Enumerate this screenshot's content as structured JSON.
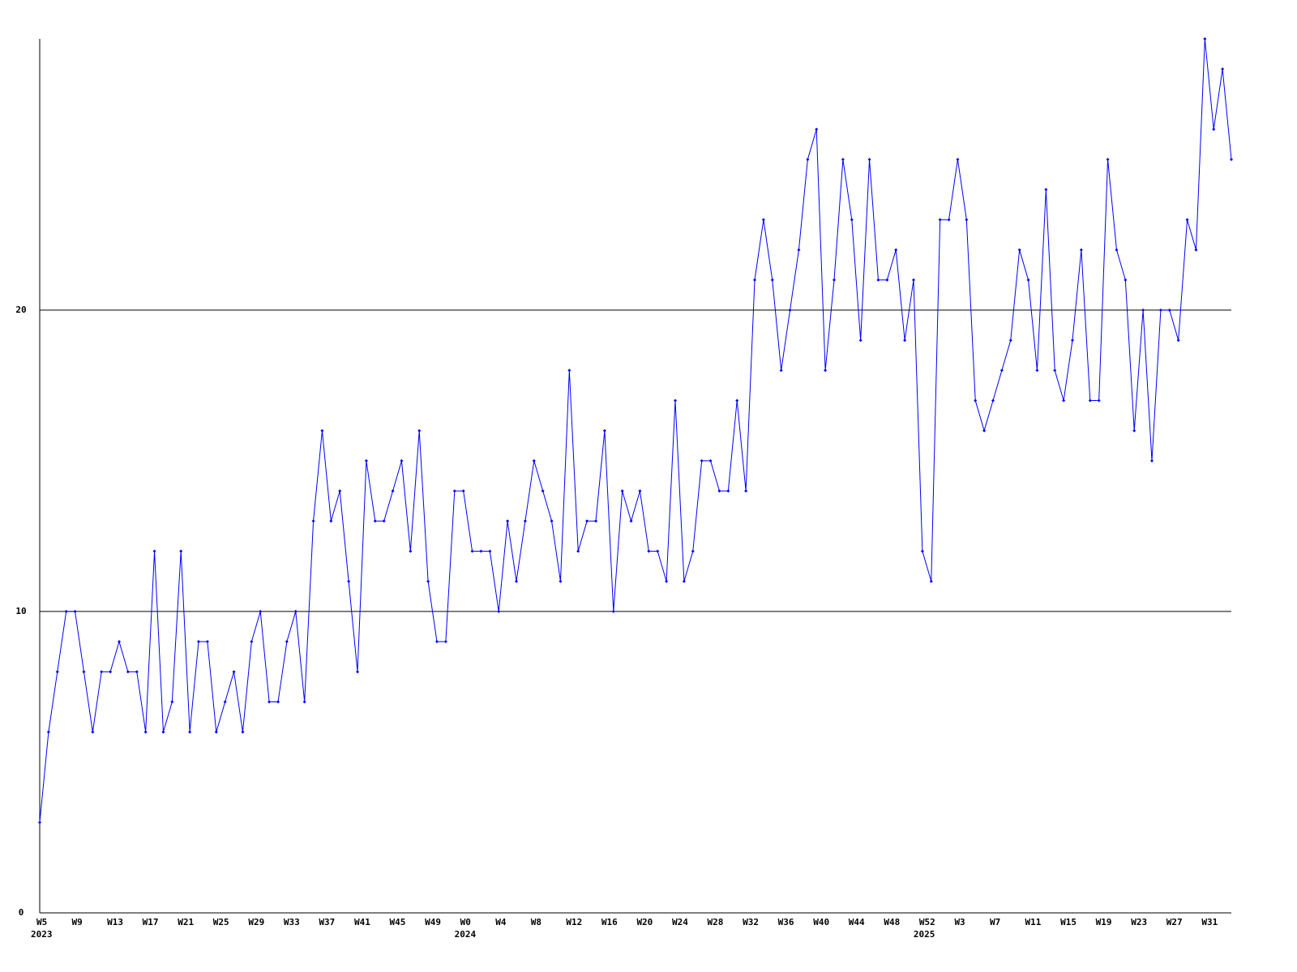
{
  "chart_data": {
    "type": "line",
    "categories": [
      "W5",
      null,
      null,
      null,
      "W9",
      null,
      null,
      null,
      "W13",
      null,
      null,
      null,
      "W17",
      null,
      null,
      null,
      "W21",
      null,
      null,
      null,
      "W25",
      null,
      null,
      null,
      "W29",
      null,
      null,
      null,
      "W33",
      null,
      null,
      null,
      "W37",
      null,
      null,
      null,
      "W41",
      null,
      null,
      null,
      "W45",
      null,
      null,
      null,
      "W49",
      null,
      null,
      null,
      "W0",
      null,
      null,
      null,
      "W4",
      null,
      null,
      null,
      "W8",
      null,
      null,
      null,
      "W12",
      null,
      null,
      null,
      "W16",
      null,
      null,
      null,
      "W20",
      null,
      null,
      null,
      "W24",
      null,
      null,
      null,
      "W28",
      null,
      null,
      null,
      "W32",
      null,
      null,
      null,
      "W36",
      null,
      null,
      null,
      "W40",
      null,
      null,
      null,
      "W44",
      null,
      null,
      null,
      "W48",
      null,
      null,
      null,
      "W52",
      null,
      null,
      null,
      "W3",
      null,
      null,
      null,
      "W7",
      null,
      null,
      null,
      "W11",
      null,
      null,
      null,
      "W15",
      null,
      null,
      null,
      "W19",
      null,
      null,
      null,
      "W23",
      null,
      null,
      null,
      "W27",
      null,
      null,
      null,
      "W31",
      null,
      null,
      null
    ],
    "category_years": [
      "2023",
      null,
      null,
      null,
      null,
      null,
      null,
      null,
      null,
      null,
      null,
      null,
      null,
      null,
      null,
      null,
      null,
      null,
      null,
      null,
      null,
      null,
      null,
      null,
      null,
      null,
      null,
      null,
      null,
      null,
      null,
      null,
      null,
      null,
      null,
      null,
      null,
      null,
      null,
      null,
      null,
      null,
      null,
      null,
      null,
      null,
      null,
      null,
      "2024",
      null,
      null,
      null,
      null,
      null,
      null,
      null,
      null,
      null,
      null,
      null,
      null,
      null,
      null,
      null,
      null,
      null,
      null,
      null,
      null,
      null,
      null,
      null,
      null,
      null,
      null,
      null,
      null,
      null,
      null,
      null,
      null,
      null,
      null,
      null,
      null,
      null,
      null,
      null,
      null,
      null,
      null,
      null,
      null,
      null,
      null,
      null,
      null,
      null,
      null,
      null,
      "2025",
      null,
      null,
      null,
      null,
      null,
      null,
      null,
      null,
      null,
      null,
      null,
      null,
      null,
      null,
      null,
      null,
      null,
      null,
      null,
      null,
      null,
      null,
      null,
      null,
      null,
      null,
      null,
      null,
      null,
      null,
      null,
      null,
      null,
      null,
      null
    ],
    "values": [
      3,
      6,
      8,
      10,
      10,
      8,
      6,
      8,
      8,
      9,
      8,
      8,
      6,
      12,
      6,
      7,
      12,
      6,
      9,
      9,
      6,
      7,
      8,
      6,
      9,
      10,
      7,
      7,
      9,
      10,
      7,
      13,
      16,
      13,
      14,
      11,
      8,
      15,
      13,
      13,
      14,
      15,
      12,
      16,
      11,
      9,
      9,
      14,
      14,
      12,
      12,
      12,
      10,
      13,
      11,
      13,
      15,
      14,
      13,
      11,
      18,
      12,
      13,
      13,
      16,
      10,
      14,
      13,
      14,
      12,
      12,
      11,
      17,
      11,
      12,
      15,
      15,
      14,
      14,
      17,
      14,
      21,
      23,
      21,
      18,
      20,
      22,
      25,
      26,
      18,
      21,
      25,
      23,
      19,
      25,
      21,
      21,
      22,
      19,
      21,
      12,
      11,
      23,
      23,
      25,
      23,
      17,
      16,
      17,
      18,
      19,
      22,
      21,
      18,
      24,
      18,
      17,
      19,
      22,
      17,
      17,
      25,
      22,
      21,
      16,
      20,
      15,
      20,
      20,
      19,
      23,
      22,
      29,
      26,
      28,
      25
    ],
    "color": "#0000ff",
    "ylim": [
      0,
      29
    ],
    "yticks": [
      0,
      10,
      20
    ],
    "grid": true
  }
}
